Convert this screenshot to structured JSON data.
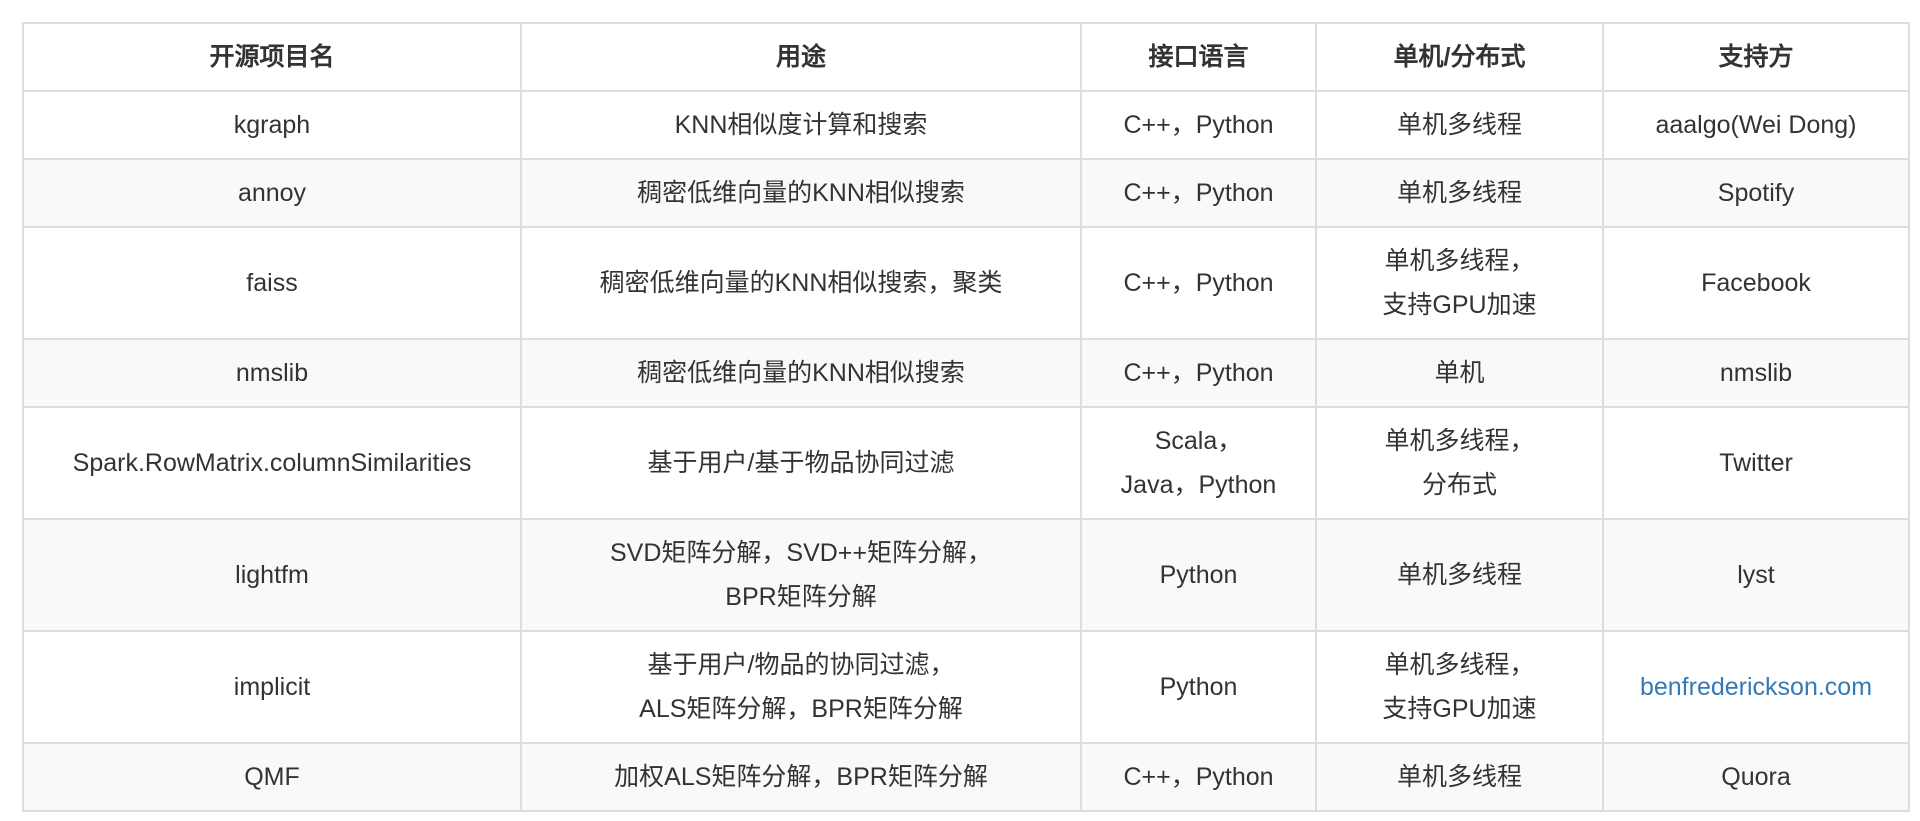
{
  "colors": {
    "text": "#333333",
    "border": "#dddddd",
    "stripe": "#f9f9f9",
    "link": "#337ab7"
  },
  "table": {
    "headers": [
      "开源项目名",
      "用途",
      "接口语言",
      "单机/分布式",
      "支持方"
    ],
    "rows": [
      {
        "name": [
          "kgraph"
        ],
        "use": [
          "KNN相似度计算和搜索"
        ],
        "lang": [
          "C++，Python"
        ],
        "mode": [
          "单机多线程"
        ],
        "support": [
          "aaalgo(Wei Dong)"
        ],
        "link": false
      },
      {
        "name": [
          "annoy"
        ],
        "use": [
          "稠密低维向量的KNN相似搜索"
        ],
        "lang": [
          "C++，Python"
        ],
        "mode": [
          "单机多线程"
        ],
        "support": [
          "Spotify"
        ],
        "link": false
      },
      {
        "name": [
          "faiss"
        ],
        "use": [
          "稠密低维向量的KNN相似搜索，聚类"
        ],
        "lang": [
          "C++，Python"
        ],
        "mode": [
          "单机多线程，",
          "支持GPU加速"
        ],
        "support": [
          "Facebook"
        ],
        "link": false
      },
      {
        "name": [
          "nmslib"
        ],
        "use": [
          "稠密低维向量的KNN相似搜索"
        ],
        "lang": [
          "C++，Python"
        ],
        "mode": [
          "单机"
        ],
        "support": [
          "nmslib"
        ],
        "link": false
      },
      {
        "name": [
          "Spark.RowMatrix.columnSimilarities"
        ],
        "use": [
          "基于用户/基于物品协同过滤"
        ],
        "lang": [
          "Scala，",
          "Java，Python"
        ],
        "mode": [
          "单机多线程，",
          "分布式"
        ],
        "support": [
          "Twitter"
        ],
        "link": false
      },
      {
        "name": [
          "lightfm"
        ],
        "use": [
          "SVD矩阵分解，SVD++矩阵分解，",
          "BPR矩阵分解"
        ],
        "lang": [
          "Python"
        ],
        "mode": [
          "单机多线程"
        ],
        "support": [
          "lyst"
        ],
        "link": false
      },
      {
        "name": [
          "implicit"
        ],
        "use": [
          "基于用户/物品的协同过滤，",
          "ALS矩阵分解，BPR矩阵分解"
        ],
        "lang": [
          "Python"
        ],
        "mode": [
          "单机多线程，",
          "支持GPU加速"
        ],
        "support": [
          "benfrederickson.com"
        ],
        "link": true
      },
      {
        "name": [
          "QMF"
        ],
        "use": [
          "加权ALS矩阵分解，BPR矩阵分解"
        ],
        "lang": [
          "C++，Python"
        ],
        "mode": [
          "单机多线程"
        ],
        "support": [
          "Quora"
        ],
        "link": false
      }
    ]
  }
}
